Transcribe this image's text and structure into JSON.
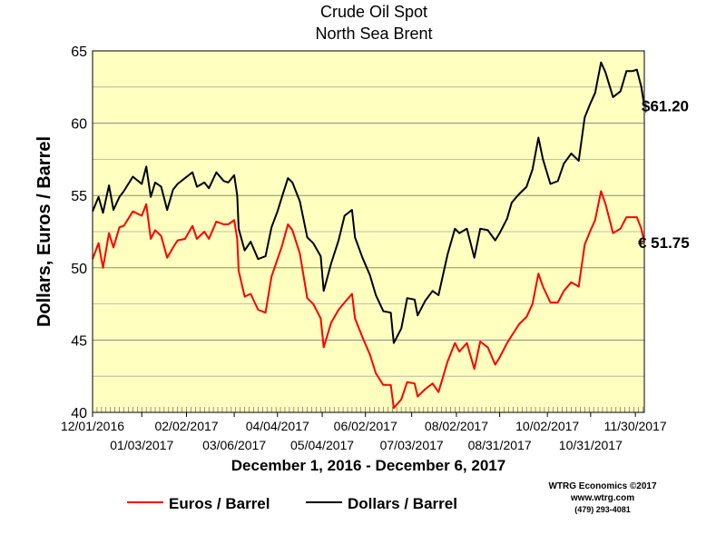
{
  "chart_data": {
    "type": "line",
    "title": "Crude Oil Spot",
    "subtitle": "North Sea Brent",
    "ylabel": "Dollars, Euros / Barrel",
    "xlabel": "December 1, 2016 - December 6, 2017",
    "ylim": [
      40,
      65
    ],
    "y_ticks": [
      "40",
      "45",
      "50",
      "55",
      "60",
      "65"
    ],
    "y_tick_values": [
      40,
      45,
      50,
      55,
      60,
      65
    ],
    "x_ticks_upper": [
      {
        "label": "12/01/2016",
        "date": "2016-12-01"
      },
      {
        "label": "02/02/2017",
        "date": "2017-02-02"
      },
      {
        "label": "04/04/2017",
        "date": "2017-04-04"
      },
      {
        "label": "06/02/2017",
        "date": "2017-06-02"
      },
      {
        "label": "08/02/2017",
        "date": "2017-08-02"
      },
      {
        "label": "10/02/2017",
        "date": "2017-10-02"
      },
      {
        "label": "11/30/2017",
        "date": "2017-11-30"
      }
    ],
    "x_ticks_lower": [
      {
        "label": "01/03/2017",
        "date": "2017-01-03"
      },
      {
        "label": "03/06/2017",
        "date": "2017-03-06"
      },
      {
        "label": "05/04/2017",
        "date": "2017-05-04"
      },
      {
        "label": "07/03/2017",
        "date": "2017-07-03"
      },
      {
        "label": "08/31/2017",
        "date": "2017-08-31"
      },
      {
        "label": "10/31/2017",
        "date": "2017-10-31"
      }
    ],
    "x_range": [
      "2016-12-01",
      "2017-12-06"
    ],
    "grid": true,
    "background_color": "#ffffc0",
    "legend_position": "bottom-left",
    "series": [
      {
        "name": "Dollars / Barrel",
        "color": "#000000",
        "end_label": "$61.20",
        "points": [
          [
            "2016-12-01",
            53.9
          ],
          [
            "2016-12-05",
            54.9
          ],
          [
            "2016-12-08",
            53.8
          ],
          [
            "2016-12-12",
            55.7
          ],
          [
            "2016-12-15",
            54.0
          ],
          [
            "2016-12-19",
            54.9
          ],
          [
            "2016-12-22",
            55.3
          ],
          [
            "2016-12-28",
            56.3
          ],
          [
            "2017-01-03",
            55.8
          ],
          [
            "2017-01-06",
            57.0
          ],
          [
            "2017-01-09",
            54.9
          ],
          [
            "2017-01-12",
            55.9
          ],
          [
            "2017-01-16",
            55.6
          ],
          [
            "2017-01-20",
            54.0
          ],
          [
            "2017-01-24",
            55.4
          ],
          [
            "2017-01-27",
            55.8
          ],
          [
            "2017-02-01",
            56.2
          ],
          [
            "2017-02-06",
            56.6
          ],
          [
            "2017-02-09",
            55.6
          ],
          [
            "2017-02-14",
            55.9
          ],
          [
            "2017-02-17",
            55.5
          ],
          [
            "2017-02-22",
            56.6
          ],
          [
            "2017-02-27",
            56.0
          ],
          [
            "2017-03-02",
            55.9
          ],
          [
            "2017-03-06",
            56.4
          ],
          [
            "2017-03-08",
            55.0
          ],
          [
            "2017-03-09",
            52.7
          ],
          [
            "2017-03-13",
            51.2
          ],
          [
            "2017-03-17",
            51.8
          ],
          [
            "2017-03-22",
            50.6
          ],
          [
            "2017-03-27",
            50.8
          ],
          [
            "2017-03-31",
            52.8
          ],
          [
            "2017-04-04",
            53.9
          ],
          [
            "2017-04-07",
            54.9
          ],
          [
            "2017-04-11",
            56.2
          ],
          [
            "2017-04-14",
            55.9
          ],
          [
            "2017-04-19",
            54.6
          ],
          [
            "2017-04-24",
            52.1
          ],
          [
            "2017-04-28",
            51.7
          ],
          [
            "2017-05-03",
            50.8
          ],
          [
            "2017-05-05",
            48.4
          ],
          [
            "2017-05-10",
            50.3
          ],
          [
            "2017-05-15",
            51.9
          ],
          [
            "2017-05-19",
            53.6
          ],
          [
            "2017-05-24",
            54.0
          ],
          [
            "2017-05-26",
            52.1
          ],
          [
            "2017-05-31",
            50.7
          ],
          [
            "2017-06-05",
            49.5
          ],
          [
            "2017-06-09",
            48.1
          ],
          [
            "2017-06-14",
            47.0
          ],
          [
            "2017-06-19",
            46.9
          ],
          [
            "2017-06-21",
            44.8
          ],
          [
            "2017-06-26",
            45.8
          ],
          [
            "2017-06-30",
            47.9
          ],
          [
            "2017-07-05",
            47.8
          ],
          [
            "2017-07-07",
            46.7
          ],
          [
            "2017-07-12",
            47.7
          ],
          [
            "2017-07-17",
            48.4
          ],
          [
            "2017-07-21",
            48.1
          ],
          [
            "2017-07-27",
            50.9
          ],
          [
            "2017-08-01",
            52.7
          ],
          [
            "2017-08-04",
            52.4
          ],
          [
            "2017-08-09",
            52.7
          ],
          [
            "2017-08-14",
            50.7
          ],
          [
            "2017-08-18",
            52.7
          ],
          [
            "2017-08-23",
            52.6
          ],
          [
            "2017-08-28",
            51.9
          ],
          [
            "2017-08-31",
            52.4
          ],
          [
            "2017-09-05",
            53.4
          ],
          [
            "2017-09-08",
            54.5
          ],
          [
            "2017-09-13",
            55.1
          ],
          [
            "2017-09-18",
            55.6
          ],
          [
            "2017-09-22",
            56.8
          ],
          [
            "2017-09-26",
            59.0
          ],
          [
            "2017-09-29",
            57.5
          ],
          [
            "2017-10-04",
            55.8
          ],
          [
            "2017-10-09",
            56.0
          ],
          [
            "2017-10-13",
            57.2
          ],
          [
            "2017-10-18",
            57.9
          ],
          [
            "2017-10-23",
            57.4
          ],
          [
            "2017-10-27",
            60.4
          ],
          [
            "2017-10-31",
            61.4
          ],
          [
            "2017-11-03",
            62.1
          ],
          [
            "2017-11-07",
            64.2
          ],
          [
            "2017-11-10",
            63.5
          ],
          [
            "2017-11-15",
            61.8
          ],
          [
            "2017-11-20",
            62.2
          ],
          [
            "2017-11-24",
            63.6
          ],
          [
            "2017-11-28",
            63.6
          ],
          [
            "2017-12-01",
            63.7
          ],
          [
            "2017-12-04",
            62.5
          ],
          [
            "2017-12-06",
            61.2
          ]
        ]
      },
      {
        "name": "Euros / Barrel",
        "color": "#ff0000",
        "end_label": "€ 51.75",
        "points": [
          [
            "2016-12-01",
            50.6
          ],
          [
            "2016-12-05",
            51.7
          ],
          [
            "2016-12-08",
            50.0
          ],
          [
            "2016-12-12",
            52.4
          ],
          [
            "2016-12-15",
            51.4
          ],
          [
            "2016-12-19",
            52.8
          ],
          [
            "2016-12-22",
            52.9
          ],
          [
            "2016-12-28",
            53.9
          ],
          [
            "2017-01-03",
            53.6
          ],
          [
            "2017-01-06",
            54.4
          ],
          [
            "2017-01-09",
            52.0
          ],
          [
            "2017-01-12",
            52.6
          ],
          [
            "2017-01-16",
            52.2
          ],
          [
            "2017-01-20",
            50.7
          ],
          [
            "2017-01-24",
            51.4
          ],
          [
            "2017-01-27",
            51.9
          ],
          [
            "2017-02-01",
            52.0
          ],
          [
            "2017-02-06",
            52.9
          ],
          [
            "2017-02-09",
            52.0
          ],
          [
            "2017-02-14",
            52.5
          ],
          [
            "2017-02-17",
            52.0
          ],
          [
            "2017-02-22",
            53.2
          ],
          [
            "2017-02-27",
            53.0
          ],
          [
            "2017-03-02",
            53.0
          ],
          [
            "2017-03-06",
            53.3
          ],
          [
            "2017-03-08",
            52.0
          ],
          [
            "2017-03-09",
            49.8
          ],
          [
            "2017-03-13",
            48.0
          ],
          [
            "2017-03-17",
            48.2
          ],
          [
            "2017-03-22",
            47.1
          ],
          [
            "2017-03-27",
            46.9
          ],
          [
            "2017-03-31",
            49.4
          ],
          [
            "2017-04-04",
            50.6
          ],
          [
            "2017-04-07",
            51.5
          ],
          [
            "2017-04-11",
            53.0
          ],
          [
            "2017-04-14",
            52.6
          ],
          [
            "2017-04-19",
            51.0
          ],
          [
            "2017-04-24",
            47.9
          ],
          [
            "2017-04-28",
            47.5
          ],
          [
            "2017-05-03",
            46.5
          ],
          [
            "2017-05-05",
            44.5
          ],
          [
            "2017-05-10",
            46.2
          ],
          [
            "2017-05-15",
            47.1
          ],
          [
            "2017-05-19",
            47.6
          ],
          [
            "2017-05-24",
            48.2
          ],
          [
            "2017-05-26",
            46.5
          ],
          [
            "2017-05-31",
            45.2
          ],
          [
            "2017-06-05",
            44.0
          ],
          [
            "2017-06-09",
            42.7
          ],
          [
            "2017-06-14",
            41.9
          ],
          [
            "2017-06-19",
            41.9
          ],
          [
            "2017-06-21",
            40.3
          ],
          [
            "2017-06-26",
            40.9
          ],
          [
            "2017-06-30",
            42.1
          ],
          [
            "2017-07-05",
            42.0
          ],
          [
            "2017-07-07",
            41.1
          ],
          [
            "2017-07-12",
            41.6
          ],
          [
            "2017-07-17",
            42.0
          ],
          [
            "2017-07-21",
            41.4
          ],
          [
            "2017-07-27",
            43.5
          ],
          [
            "2017-08-01",
            44.8
          ],
          [
            "2017-08-04",
            44.2
          ],
          [
            "2017-08-09",
            44.8
          ],
          [
            "2017-08-14",
            43.0
          ],
          [
            "2017-08-18",
            44.9
          ],
          [
            "2017-08-23",
            44.5
          ],
          [
            "2017-08-28",
            43.3
          ],
          [
            "2017-08-31",
            43.8
          ],
          [
            "2017-09-05",
            44.8
          ],
          [
            "2017-09-08",
            45.3
          ],
          [
            "2017-09-13",
            46.1
          ],
          [
            "2017-09-18",
            46.6
          ],
          [
            "2017-09-22",
            47.5
          ],
          [
            "2017-09-26",
            49.6
          ],
          [
            "2017-09-29",
            48.7
          ],
          [
            "2017-10-04",
            47.6
          ],
          [
            "2017-10-09",
            47.6
          ],
          [
            "2017-10-13",
            48.4
          ],
          [
            "2017-10-18",
            49.0
          ],
          [
            "2017-10-23",
            48.7
          ],
          [
            "2017-10-27",
            51.6
          ],
          [
            "2017-10-31",
            52.6
          ],
          [
            "2017-11-03",
            53.3
          ],
          [
            "2017-11-07",
            55.3
          ],
          [
            "2017-11-10",
            54.4
          ],
          [
            "2017-11-15",
            52.4
          ],
          [
            "2017-11-20",
            52.7
          ],
          [
            "2017-11-24",
            53.5
          ],
          [
            "2017-11-28",
            53.5
          ],
          [
            "2017-12-01",
            53.5
          ],
          [
            "2017-12-04",
            52.7
          ],
          [
            "2017-12-06",
            51.75
          ]
        ]
      }
    ]
  },
  "legend": [
    {
      "label": "Euros / Barrel",
      "color": "#ff0000"
    },
    {
      "label": "Dollars / Barrel",
      "color": "#000000"
    }
  ],
  "credit": {
    "line1": "WTRG Economics  ©2017",
    "line2": "www.wtrg.com",
    "line3": "(479) 293-4081"
  }
}
